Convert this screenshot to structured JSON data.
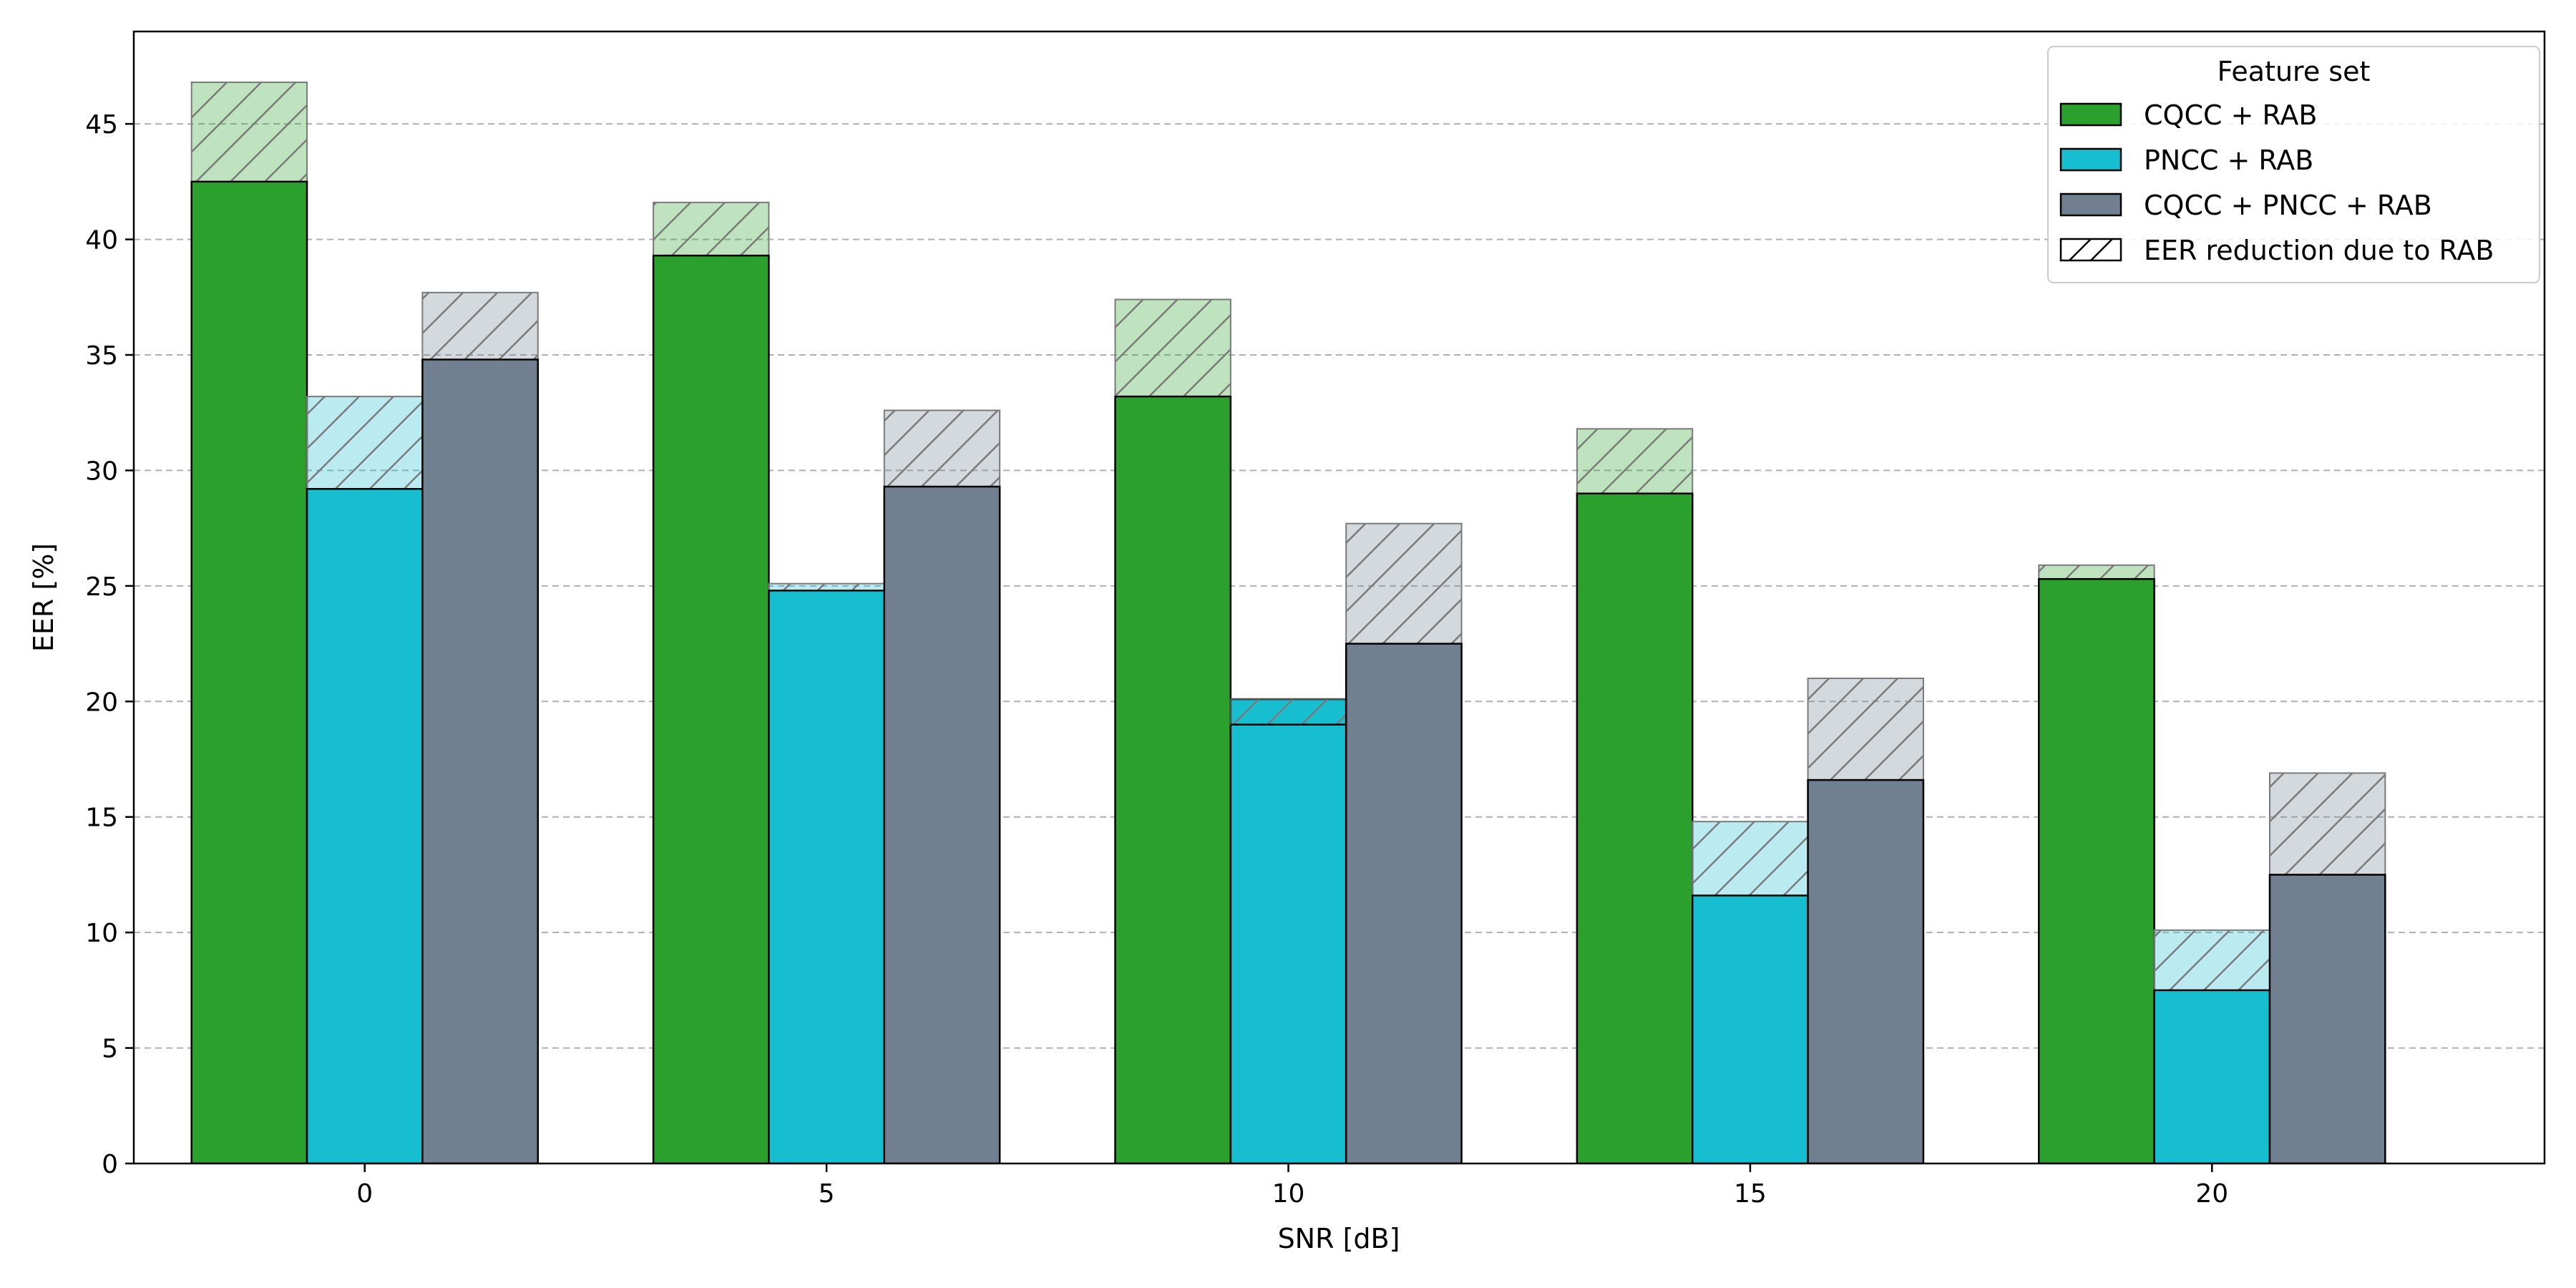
{
  "chart_data": {
    "type": "bar",
    "xlabel": "SNR [dB]",
    "ylabel": "EER [%]",
    "ylim": [
      0,
      49
    ],
    "yticks": [
      0,
      5,
      10,
      15,
      20,
      25,
      30,
      35,
      40,
      45
    ],
    "categories": [
      "0",
      "5",
      "10",
      "15",
      "20"
    ],
    "grid": "y, dashed",
    "legend": {
      "title": "Feature set",
      "position": "top-right",
      "hatch_label": "EER reduction due to RAB"
    },
    "series": [
      {
        "name": "CQCC + RAB",
        "color": "#2ca02c",
        "values": [
          42.5,
          39.3,
          33.2,
          29.0,
          25.3
        ],
        "without_rab": [
          46.8,
          41.6,
          37.4,
          31.8,
          25.9
        ]
      },
      {
        "name": "PNCC + RAB",
        "color": "#17becf",
        "values": [
          29.2,
          24.8,
          20.1,
          11.6,
          7.5
        ],
        "without_rab": [
          33.2,
          25.1,
          19.0,
          14.8,
          10.1
        ]
      },
      {
        "name": "CQCC + PNCC + RAB",
        "color": "#708090",
        "values": [
          34.8,
          29.3,
          22.5,
          16.6,
          12.5
        ],
        "without_rab": [
          37.7,
          32.6,
          27.7,
          21.0,
          16.9
        ]
      }
    ]
  }
}
